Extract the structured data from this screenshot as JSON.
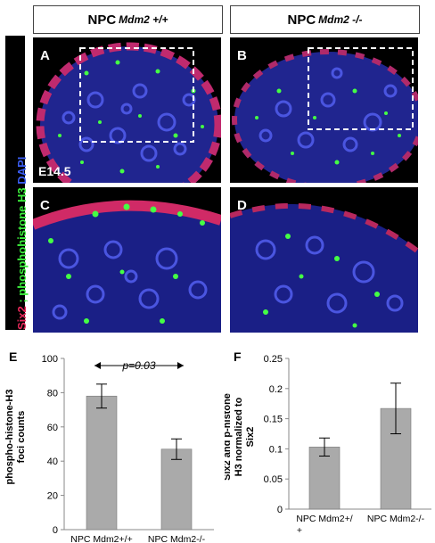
{
  "headers": {
    "left": {
      "base": "NPC",
      "sup": "Mdm2 +/+"
    },
    "right": {
      "base": "NPC",
      "sup": "Mdm2 -/-"
    }
  },
  "side_label": {
    "six2": "Six2",
    "sep": " ; ",
    "ph3": "phosphohistone H3",
    "dapi": " DAPI"
  },
  "panels": {
    "a": "A",
    "b": "B",
    "c": "C",
    "d": "D",
    "e": "E",
    "f": "F"
  },
  "age_label": "E14.5",
  "colors": {
    "six2": "#e8285a",
    "ph3": "#3df03d",
    "dapi": "#2a34d8",
    "bar": "#aaaaaa"
  },
  "chart_data": [
    {
      "type": "bar",
      "categories": [
        "NPC Mdm2+/+",
        "NPC Mdm2-/-"
      ],
      "values": [
        78,
        47
      ],
      "errors": [
        7,
        6
      ],
      "ylabel": "phospho-histone-H3 foci counts",
      "ylim": [
        0,
        100
      ],
      "yticks": [
        "0",
        "20",
        "40",
        "60",
        "80",
        "100"
      ],
      "annotation": "p=0.03",
      "grid": false
    },
    {
      "type": "bar",
      "categories": [
        "NPC Mdm2+/ +",
        "NPC Mdm2-/-"
      ],
      "values": [
        0.103,
        0.167
      ],
      "errors": [
        0.015,
        0.042
      ],
      "ylabel": "Six2 and p-histone H3 normalized to Six2",
      "ylim": [
        0,
        0.25
      ],
      "yticks": [
        "0",
        "0.05",
        "0.1",
        "0.15",
        "0.2",
        "0.25"
      ],
      "grid": false
    }
  ]
}
